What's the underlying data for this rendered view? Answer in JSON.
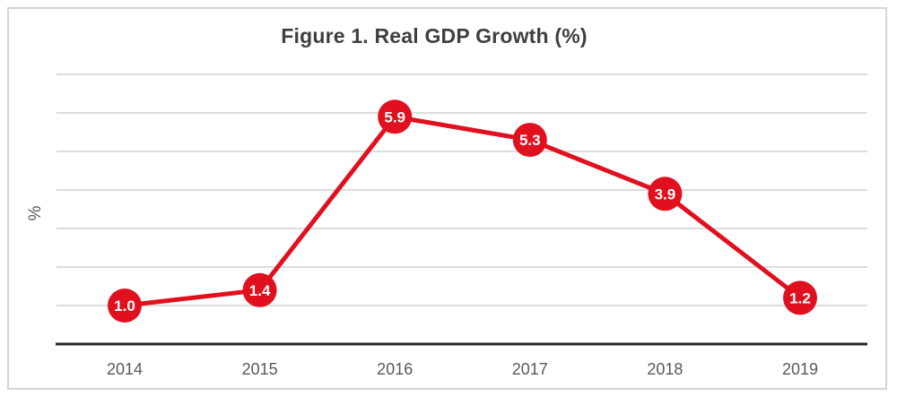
{
  "chart_data": {
    "type": "line",
    "title": "Figure 1. Real GDP Growth (%)",
    "xlabel": "",
    "ylabel": "%",
    "categories": [
      "2014",
      "2015",
      "2016",
      "2017",
      "2018",
      "2019"
    ],
    "series": [
      {
        "name": "Real GDP Growth",
        "values": [
          1.0,
          1.4,
          5.9,
          5.3,
          3.9,
          1.2
        ],
        "data_labels": [
          "1.0",
          "1.4",
          "5.9",
          "5.3",
          "3.9",
          "1.2"
        ]
      }
    ],
    "ylim": [
      0,
      7
    ],
    "gridlines": {
      "show": true,
      "interval": 1,
      "count": 7
    },
    "legend": {
      "show": false,
      "position": "none"
    },
    "colors": {
      "line": "#e0101f",
      "marker_fill": "#e0101f",
      "data_label_text": "#ffffff",
      "grid": "#d0d0d0",
      "axis_line": "#262626",
      "tick_label": "#595959",
      "title": "#3f3f3f",
      "frame_border": "#d5d5d5",
      "background": "#ffffff"
    }
  }
}
